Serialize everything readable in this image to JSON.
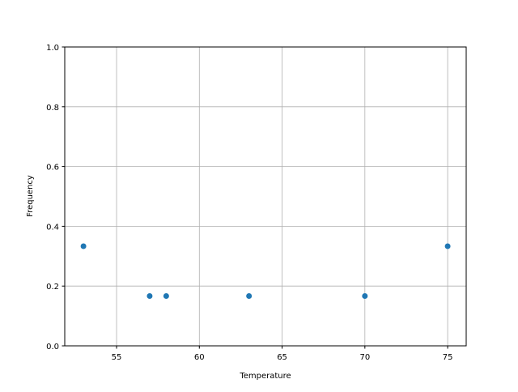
{
  "chart_data": {
    "type": "scatter",
    "title": "",
    "xlabel": "Temperature",
    "ylabel": "Frequency",
    "xlim": [
      51.87,
      76.12
    ],
    "ylim": [
      0,
      1
    ],
    "xticks": [
      55,
      60,
      65,
      70,
      75
    ],
    "yticks": [
      0.0,
      0.2,
      0.4,
      0.6,
      0.8,
      1.0
    ],
    "xtick_labels": [
      "55",
      "60",
      "65",
      "70",
      "75"
    ],
    "ytick_labels": [
      "0.0",
      "0.2",
      "0.4",
      "0.6",
      "0.8",
      "1.0"
    ],
    "grid": true,
    "color": "#1f77b4",
    "points": [
      {
        "x": 53,
        "y": 0.3333
      },
      {
        "x": 57,
        "y": 0.1667
      },
      {
        "x": 58,
        "y": 0.1667
      },
      {
        "x": 63,
        "y": 0.1667
      },
      {
        "x": 70,
        "y": 0.1667
      },
      {
        "x": 75,
        "y": 0.3333
      }
    ]
  }
}
